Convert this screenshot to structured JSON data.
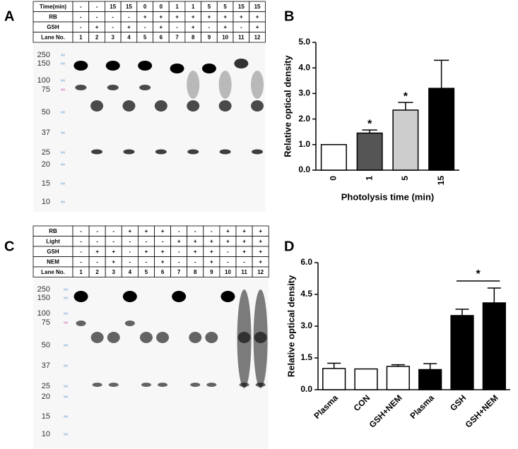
{
  "panels": [
    "A",
    "B",
    "C",
    "D"
  ],
  "blot_a": {
    "table": {
      "rows": [
        [
          "Time(min)",
          "-",
          "-",
          "15",
          "15",
          "0",
          "0",
          "1",
          "1",
          "5",
          "5",
          "15",
          "15"
        ],
        [
          "RB",
          "-",
          "-",
          "-",
          "-",
          "+",
          "+",
          "+",
          "+",
          "+",
          "+",
          "+",
          "+"
        ],
        [
          "GSH",
          "-",
          "+",
          "-",
          "+",
          "-",
          "+",
          "-",
          "+",
          "-",
          "+",
          "-",
          "+"
        ],
        [
          "Lane No.",
          "1",
          "2",
          "3",
          "4",
          "5",
          "6",
          "7",
          "8",
          "9",
          "10",
          "11",
          "12"
        ]
      ]
    },
    "markers": [
      "250",
      "150",
      "100",
      "75",
      "50",
      "37",
      "25",
      "20",
      "15",
      "10"
    ]
  },
  "blot_c": {
    "table": {
      "rows": [
        [
          "RB",
          "-",
          "-",
          "-",
          "+",
          "+",
          "+",
          "-",
          "-",
          "-",
          "+",
          "+",
          "+"
        ],
        [
          "Light",
          "-",
          "-",
          "-",
          "-",
          "-",
          "-",
          "+",
          "+",
          "+",
          "+",
          "+",
          "+"
        ],
        [
          "GSH",
          "-",
          "+",
          "+",
          "-",
          "+",
          "+",
          "-",
          "+",
          "+",
          "-",
          "+",
          "+"
        ],
        [
          "NEM",
          "-",
          "-",
          "+",
          "-",
          "-",
          "+",
          "-",
          "-",
          "+",
          "-",
          "-",
          "+"
        ],
        [
          "Lane No.",
          "1",
          "2",
          "3",
          "4",
          "5",
          "6",
          "7",
          "8",
          "9",
          "10",
          "11",
          "12"
        ]
      ]
    },
    "markers": [
      "250",
      "150",
      "100",
      "75",
      "50",
      "37",
      "25",
      "20",
      "15",
      "10"
    ]
  },
  "chart_data": [
    {
      "type": "bar",
      "xlabel": "Photolysis time (min)",
      "ylabel": "Relative optical density",
      "categories": [
        "0",
        "1",
        "5",
        "15"
      ],
      "values": [
        1.0,
        1.45,
        2.35,
        3.2
      ],
      "errors": [
        0,
        0.12,
        0.3,
        1.1
      ],
      "colors": [
        "#ffffff",
        "#555555",
        "#cccccc",
        "#000000"
      ],
      "annotations": [
        null,
        "*",
        "*",
        null
      ],
      "ylim": [
        0,
        5
      ],
      "yticks": [
        {
          "value": 0,
          "label": "0.0"
        },
        {
          "value": 1,
          "label": "1.0"
        },
        {
          "value": 2,
          "label": "2.0"
        },
        {
          "value": 3,
          "label": "3.0"
        },
        {
          "value": 4,
          "label": "4.0"
        },
        {
          "value": 5,
          "label": "5.0"
        }
      ],
      "x_label_rotation": -90
    },
    {
      "type": "bar",
      "ylabel": "Relative optical density",
      "categories": [
        "Plasma",
        "CON",
        "GSH+NEM",
        "Plasma",
        "GSH",
        "GSH+NEM"
      ],
      "values": [
        1.0,
        0.98,
        1.1,
        0.95,
        3.5,
        4.1
      ],
      "errors": [
        0.25,
        0,
        0.08,
        0.28,
        0.3,
        0.7
      ],
      "colors": [
        "#ffffff",
        "#ffffff",
        "#ffffff",
        "#000000",
        "#000000",
        "#000000"
      ],
      "comparisons": [
        {
          "label": "*",
          "between": [
            4,
            5
          ]
        }
      ],
      "ylim": [
        0,
        6
      ],
      "yticks": [
        {
          "value": 0,
          "label": "0.0"
        },
        {
          "value": 1.5,
          "label": "1.5"
        },
        {
          "value": 3,
          "label": "3.0"
        },
        {
          "value": 4.5,
          "label": "4.5"
        },
        {
          "value": 6,
          "label": "6.0"
        }
      ],
      "x_label_rotation": -45
    }
  ]
}
